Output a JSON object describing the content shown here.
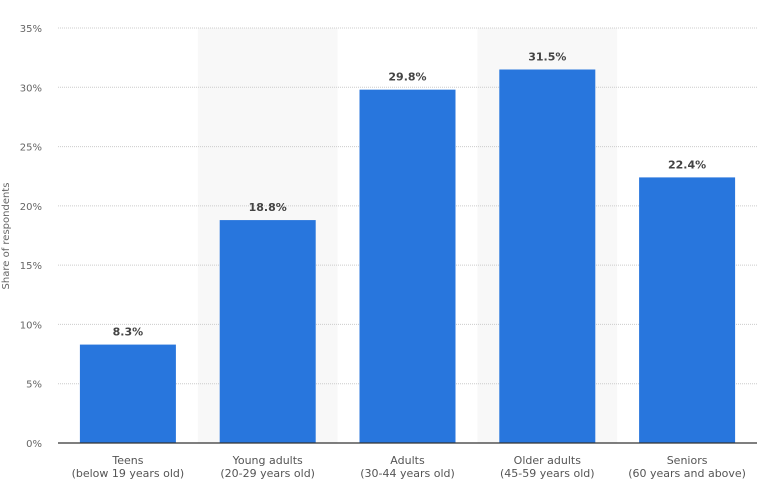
{
  "chart_data": {
    "type": "bar",
    "title": "",
    "xlabel": "",
    "ylabel": "Share of respondents",
    "ylim": [
      0,
      35
    ],
    "yticks": [
      0,
      5,
      10,
      15,
      20,
      25,
      30,
      35
    ],
    "ytick_labels": [
      "0%",
      "5%",
      "10%",
      "15%",
      "20%",
      "25%",
      "30%",
      "35%"
    ],
    "grid": true,
    "categories": [
      [
        "Teens",
        "(below 19 years old)"
      ],
      [
        "Young adults",
        "(20-29 years old)"
      ],
      [
        "Adults",
        "(30-44 years old)"
      ],
      [
        "Older adults",
        "(45-59 years old)"
      ],
      [
        "Seniors",
        "(60 years and above)"
      ]
    ],
    "values": [
      8.3,
      18.8,
      29.8,
      31.5,
      22.4
    ],
    "value_labels": [
      "8.3%",
      "18.8%",
      "29.8%",
      "31.5%",
      "22.4%"
    ],
    "colors": {
      "bar": "#2876dd",
      "band": "#f8f8f8",
      "grid": "#cccccc",
      "axis": "#333333"
    }
  }
}
